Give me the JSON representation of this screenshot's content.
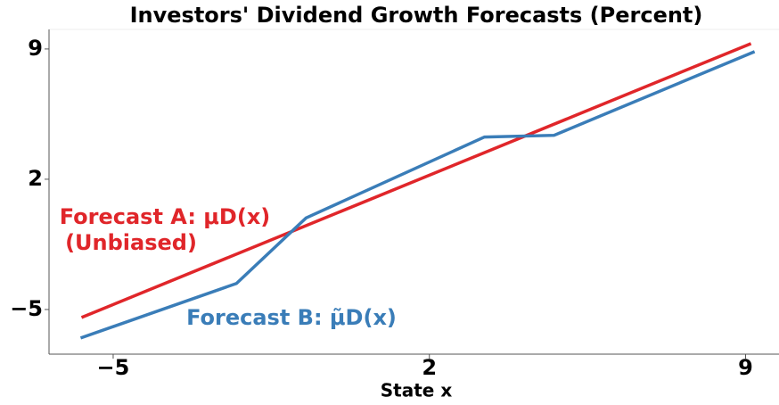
{
  "chart_data": {
    "type": "line",
    "title": "Investors' Dividend Growth Forecasts (Percent)",
    "xlabel": "State x",
    "series": [
      {
        "name": "Forecast A: μD(x)",
        "color": "#e0262a",
        "x": [
          -5.7,
          9.12
        ],
        "values": [
          -5.43,
          9.29
        ]
      },
      {
        "name": "Forecast B: μ̃D(x)",
        "color": "#3a7db8",
        "x": [
          -5.72,
          -2.27,
          -0.73,
          3.22,
          4.76,
          9.2
        ],
        "values": [
          -6.53,
          -3.6,
          -0.08,
          4.27,
          4.36,
          8.86
        ]
      }
    ],
    "annotation": "(Unbiased)",
    "xlim": [
      -6.42,
      9.74
    ],
    "xticks": [
      {
        "value": -5,
        "label": "−5"
      },
      2,
      9
    ],
    "ylim": [
      -7.4,
      10.05
    ],
    "yticks": [
      {
        "value": -5,
        "label": "−5"
      },
      2,
      9
    ],
    "grid": false
  }
}
